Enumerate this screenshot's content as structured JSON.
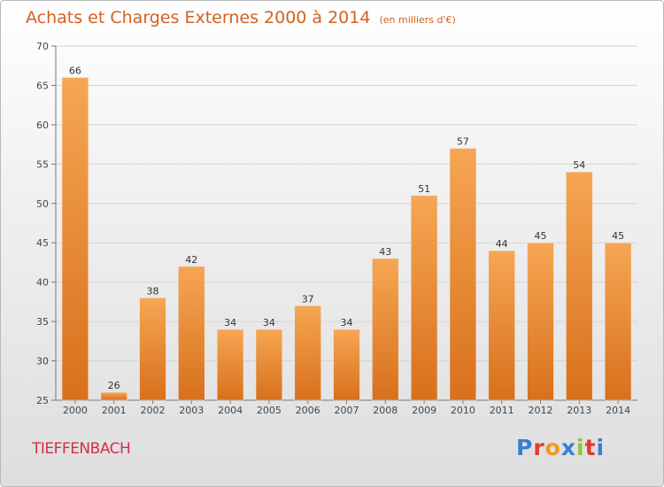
{
  "header": {
    "title": "Achats et Charges Externes 2000 à 2014",
    "subtitle": "(en milliers d'€)"
  },
  "footer": {
    "location": "TIEFFENBACH",
    "brand": "Proxiti",
    "brand_colors": [
      "#3a7fd0",
      "#e23b2e",
      "#f29a1c",
      "#3a7fd0",
      "#8cc63f",
      "#e23b2e",
      "#3a7fd0"
    ]
  },
  "chart_data": {
    "type": "bar",
    "categories": [
      "2000",
      "2001",
      "2002",
      "2003",
      "2004",
      "2005",
      "2006",
      "2007",
      "2008",
      "2009",
      "2010",
      "2011",
      "2012",
      "2013",
      "2014"
    ],
    "values": [
      66,
      26,
      38,
      42,
      34,
      34,
      37,
      34,
      43,
      51,
      57,
      44,
      45,
      54,
      45
    ],
    "title": "Achats et Charges Externes 2000 à 2014",
    "subtitle": "(en milliers d'€)",
    "ylim": [
      25,
      70
    ],
    "yticks": [
      25,
      30,
      35,
      40,
      45,
      50,
      55,
      60,
      65,
      70
    ],
    "grid": true,
    "bar_color": "#f0882f",
    "bar_color_light": "#f6a653",
    "bar_color_dark": "#d8701c"
  }
}
